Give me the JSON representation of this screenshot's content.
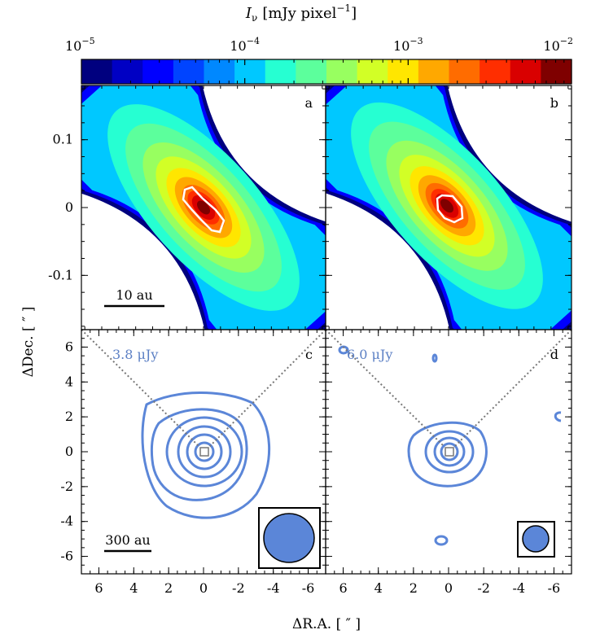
{
  "colorbar": {
    "label_prefix": "I",
    "label_sub": "ν",
    "label_unit": "[mJy pixel",
    "label_exp": "−1",
    "label_close": "]",
    "ticks": [
      {
        "base": "10",
        "exp": "−5",
        "value": 1e-05
      },
      {
        "base": "10",
        "exp": "−4",
        "value": 0.0001
      },
      {
        "base": "10",
        "exp": "−3",
        "value": 0.001
      },
      {
        "base": "10",
        "exp": "−2",
        "value": 0.01
      }
    ],
    "colors": [
      "#00007f",
      "#0000c4",
      "#0000ff",
      "#0044ff",
      "#0088ff",
      "#00c8ff",
      "#26ffd2",
      "#5cff9c",
      "#98ff60",
      "#d2ff26",
      "#ffe600",
      "#ffa800",
      "#ff6c00",
      "#ff2e00",
      "#d90000",
      "#7f0000"
    ]
  },
  "panels": {
    "a": {
      "letter": "a",
      "scalebar": "10 au"
    },
    "b": {
      "letter": "b"
    },
    "c": {
      "letter": "c",
      "rms": "3.8 μJy",
      "scalebar": "300 au"
    },
    "d": {
      "letter": "d",
      "rms": "6.0 μJy"
    }
  },
  "axes": {
    "top_y_ticks": [
      "0.1",
      "0",
      "-0.1"
    ],
    "bottom_y_ticks": [
      "6",
      "4",
      "2",
      "0",
      "-2",
      "-4",
      "-6"
    ],
    "x_ticks": [
      "6",
      "4",
      "2",
      "0",
      "-2",
      "-4",
      "-6"
    ],
    "ylabel": "ΔDec. [ ″ ]",
    "xlabel": "ΔR.A. [ ″ ]"
  },
  "chart_data": [
    {
      "type": "heatmap",
      "panel": "a",
      "title": "",
      "xlim": [
        0.18,
        -0.18
      ],
      "ylim": [
        -0.18,
        0.18
      ],
      "colorscale": "log",
      "clim": [
        1e-05,
        0.01
      ],
      "contour_color": "#ffffff"
    },
    {
      "type": "heatmap",
      "panel": "b",
      "title": "",
      "xlim": [
        0.18,
        -0.18
      ],
      "ylim": [
        -0.18,
        0.18
      ],
      "colorscale": "log",
      "clim": [
        1e-05,
        0.01
      ],
      "contour_color": "#ffffff"
    },
    {
      "type": "contour",
      "panel": "c",
      "xlim": [
        7,
        -7
      ],
      "ylim": [
        -7,
        7
      ],
      "rms_label": "3.8 μJy",
      "contour_color": "#5b7fc4",
      "beam": "circular"
    },
    {
      "type": "contour",
      "panel": "d",
      "xlim": [
        7,
        -7
      ],
      "ylim": [
        -7,
        7
      ],
      "rms_label": "6.0 μJy",
      "contour_color": "#5b7fc4",
      "beam": "circular"
    }
  ]
}
